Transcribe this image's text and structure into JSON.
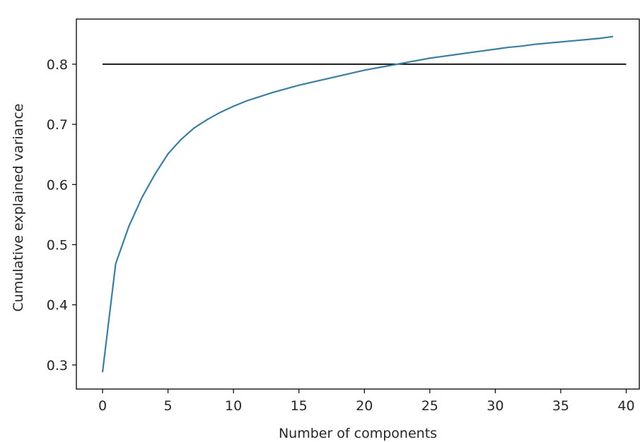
{
  "chart_data": {
    "type": "line",
    "title": "",
    "xlabel": "Number of components",
    "ylabel": "Cumulative explained variance",
    "xlim": [
      -2,
      41
    ],
    "ylim": [
      0.26,
      0.875
    ],
    "x_ticks": [
      0,
      5,
      10,
      15,
      20,
      25,
      30,
      35,
      40
    ],
    "y_ticks": [
      0.3,
      0.4,
      0.5,
      0.6,
      0.7,
      0.8
    ],
    "x_tick_labels": [
      "0",
      "5",
      "10",
      "15",
      "20",
      "25",
      "30",
      "35",
      "40"
    ],
    "y_tick_labels": [
      "0.3",
      "0.4",
      "0.5",
      "0.6",
      "0.7",
      "0.8"
    ],
    "grid": false,
    "series": [
      {
        "color": "#3b7ea1",
        "x": [
          0,
          1,
          2,
          3,
          4,
          5,
          6,
          7,
          8,
          9,
          10,
          11,
          12,
          13,
          14,
          15,
          16,
          17,
          18,
          19,
          20,
          21,
          22,
          23,
          24,
          25,
          26,
          27,
          28,
          29,
          30,
          31,
          32,
          33,
          34,
          35,
          36,
          37,
          38,
          39
        ],
        "values": [
          0.288,
          0.468,
          0.53,
          0.578,
          0.617,
          0.651,
          0.675,
          0.694,
          0.708,
          0.72,
          0.73,
          0.739,
          0.746,
          0.753,
          0.759,
          0.765,
          0.77,
          0.775,
          0.78,
          0.785,
          0.79,
          0.794,
          0.798,
          0.802,
          0.806,
          0.81,
          0.813,
          0.816,
          0.819,
          0.822,
          0.825,
          0.828,
          0.83,
          0.833,
          0.835,
          0.837,
          0.839,
          0.841,
          0.843,
          0.846
        ]
      }
    ],
    "hlines": [
      {
        "y": 0.8,
        "xmin": 0,
        "xmax": 40,
        "color": "#000000"
      }
    ]
  }
}
